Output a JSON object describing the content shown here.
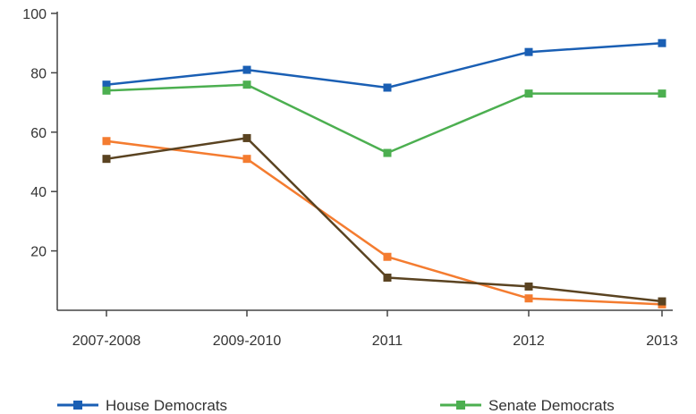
{
  "chart_data": {
    "type": "line",
    "categories": [
      "2007-2008",
      "2009-2010",
      "2011",
      "2012",
      "2013"
    ],
    "ylim": [
      0,
      100
    ],
    "yticks": [
      20,
      40,
      60,
      80,
      100
    ],
    "grid": false,
    "legend_placement": "bottom",
    "series": [
      {
        "name": "House Democrats",
        "color": "#1a5fb4",
        "values": [
          76,
          81,
          75,
          87,
          90
        ]
      },
      {
        "name": "Senate Democrats",
        "color": "#4caf50",
        "values": [
          74,
          76,
          53,
          73,
          73
        ]
      },
      {
        "name": "",
        "color": "#f47c30",
        "values": [
          57,
          51,
          18,
          4,
          2
        ]
      },
      {
        "name": "",
        "color": "#5a4321",
        "values": [
          51,
          58,
          11,
          8,
          3
        ]
      }
    ]
  }
}
